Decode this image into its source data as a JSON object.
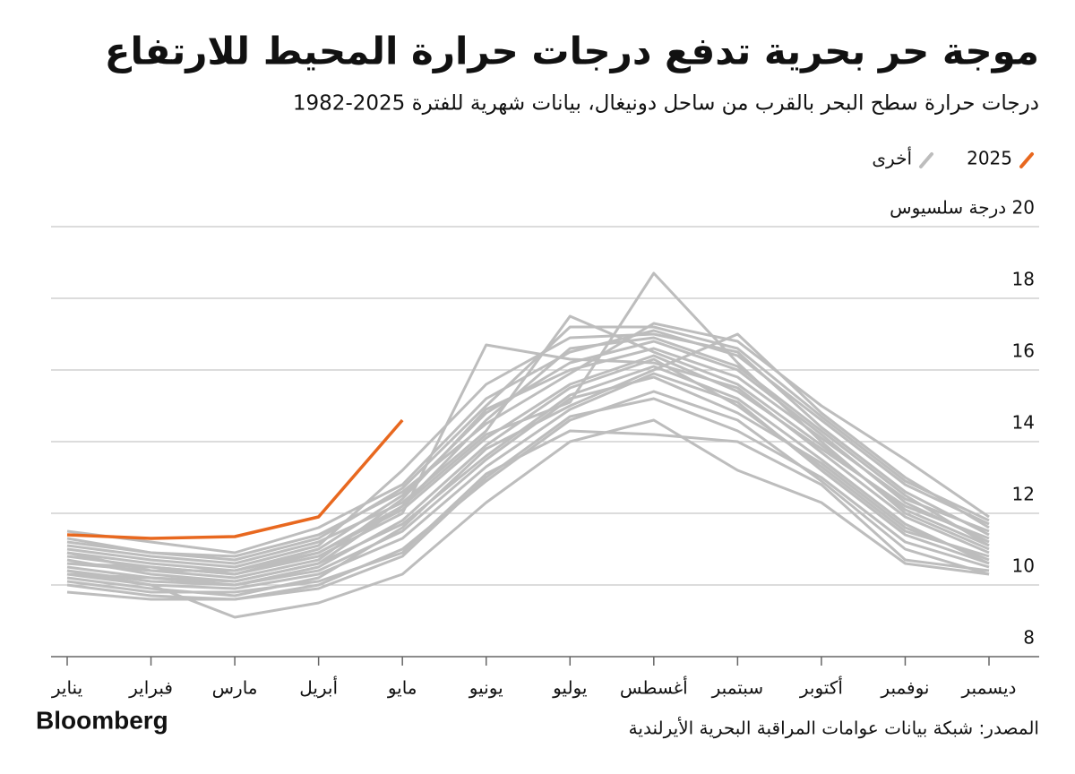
{
  "chart_data": {
    "type": "line",
    "title": "موجة حر بحرية تدفع درجات حرارة المحيط للارتفاع",
    "subtitle": "درجات حرارة سطح البحر بالقرب من ساحل دونيغال، بيانات شهرية للفترة 2025-1982",
    "categories": [
      "يناير",
      "فبراير",
      "مارس",
      "أبريل",
      "مايو",
      "يونيو",
      "يوليو",
      "أغسطس",
      "سبتمبر",
      "أكتوبر",
      "نوفمبر",
      "ديسمبر"
    ],
    "series": [
      {
        "name": "2025",
        "color": "#e8681f",
        "values": [
          11.4,
          11.3,
          11.35,
          11.9,
          14.6,
          null,
          null,
          null,
          null,
          null,
          null,
          null
        ]
      },
      {
        "name": "أخرى",
        "color": "#bdbdbd",
        "lines": [
          [
            10.9,
            10.6,
            10.4,
            11.0,
            12.5,
            14.8,
            16.2,
            16.8,
            16.0,
            14.2,
            12.3,
            11.2
          ],
          [
            10.3,
            10.0,
            9.9,
            10.3,
            11.3,
            13.3,
            14.9,
            15.9,
            15.1,
            13.2,
            11.4,
            10.6
          ],
          [
            11.5,
            11.2,
            10.9,
            11.6,
            12.8,
            15.2,
            16.5,
            17.1,
            16.4,
            14.6,
            12.8,
            11.7
          ],
          [
            9.8,
            9.6,
            9.6,
            10.0,
            11.0,
            12.9,
            14.6,
            15.4,
            14.6,
            12.9,
            11.0,
            10.3
          ],
          [
            10.6,
            10.5,
            10.3,
            10.8,
            12.0,
            16.7,
            16.3,
            16.2,
            15.5,
            13.7,
            11.9,
            10.9
          ],
          [
            10.4,
            10.0,
            9.1,
            9.5,
            10.3,
            12.3,
            14.0,
            14.6,
            13.2,
            12.3,
            10.6,
            10.3
          ],
          [
            11.1,
            10.8,
            10.6,
            11.2,
            12.3,
            14.3,
            17.5,
            16.5,
            15.6,
            13.9,
            12.1,
            11.1
          ],
          [
            10.7,
            10.3,
            10.1,
            10.6,
            12.2,
            14.2,
            15.1,
            18.7,
            16.2,
            14.0,
            12.0,
            11.0
          ],
          [
            10.2,
            9.9,
            9.7,
            10.2,
            11.6,
            13.8,
            15.0,
            16.0,
            17.0,
            14.8,
            13.0,
            11.6
          ],
          [
            11.3,
            10.9,
            10.8,
            11.4,
            12.6,
            14.5,
            15.9,
            17.3,
            16.8,
            15.0,
            13.5,
            11.9
          ],
          [
            10.5,
            10.2,
            10.0,
            10.4,
            11.5,
            13.5,
            15.2,
            15.8,
            14.8,
            13.4,
            11.6,
            10.7
          ],
          [
            10.8,
            10.5,
            10.3,
            10.9,
            12.1,
            14.1,
            15.6,
            16.4,
            15.4,
            13.8,
            12.2,
            11.3
          ],
          [
            10.1,
            9.8,
            9.8,
            10.1,
            10.9,
            13.1,
            14.3,
            14.2,
            14.0,
            12.8,
            10.7,
            10.4
          ],
          [
            11.0,
            10.7,
            10.5,
            11.1,
            13.2,
            15.6,
            16.9,
            17.0,
            16.5,
            14.4,
            12.6,
            11.4
          ],
          [
            10.4,
            10.1,
            10.0,
            10.5,
            11.8,
            13.9,
            15.5,
            16.3,
            15.0,
            13.3,
            11.5,
            10.8
          ],
          [
            10.9,
            10.4,
            10.2,
            10.7,
            12.4,
            14.9,
            16.0,
            16.6,
            15.8,
            14.1,
            12.4,
            11.5
          ],
          [
            10.0,
            9.7,
            9.6,
            9.9,
            10.8,
            13.0,
            14.7,
            15.2,
            14.3,
            13.0,
            11.2,
            10.5
          ],
          [
            10.6,
            10.4,
            10.4,
            10.9,
            12.2,
            14.6,
            16.6,
            16.9,
            16.1,
            14.3,
            12.5,
            11.1
          ],
          [
            10.3,
            10.2,
            10.1,
            10.6,
            11.7,
            13.6,
            15.3,
            16.1,
            15.2,
            13.5,
            11.7,
            10.6
          ],
          [
            11.2,
            10.9,
            10.7,
            11.3,
            12.7,
            15.0,
            17.2,
            17.2,
            16.6,
            14.7,
            12.9,
            11.8
          ]
        ]
      }
    ],
    "ylim": [
      8,
      20
    ],
    "yticks": [
      8,
      10,
      12,
      14,
      16,
      18,
      {
        "value": 20,
        "label": "20 درجة سلسيوس"
      }
    ],
    "grid": true,
    "legend": "top-right",
    "brand": "Bloomberg",
    "source": "المصدر: شبكة بيانات عوامات المراقبة البحرية الأيرلندية"
  }
}
